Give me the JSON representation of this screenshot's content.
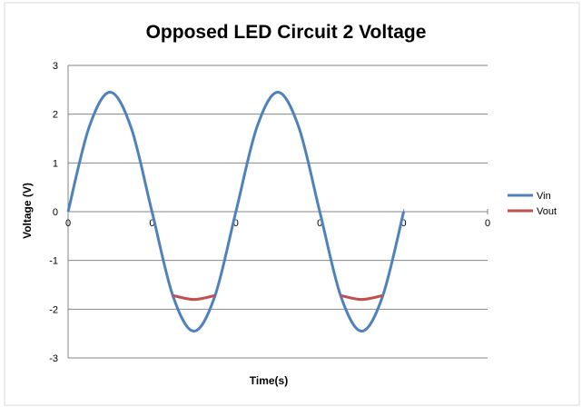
{
  "chart_data": {
    "type": "line",
    "title": "Opposed LED Circuit 2 Voltage",
    "xlabel": "Time(s)",
    "ylabel": "Voltage (V)",
    "ylim": [
      -3,
      3
    ],
    "y_ticks": [
      "3",
      "2",
      "1",
      "0",
      "-1",
      "-2",
      "-3"
    ],
    "x_tick_labels": [
      "0",
      "0",
      "0",
      "0",
      "0",
      "0"
    ],
    "xlim": [
      0,
      5
    ],
    "gridlines": true,
    "legend_position": "right",
    "series": [
      {
        "name": "Vin",
        "color": "#4f81bd",
        "x": [
          0.0,
          0.25,
          0.5,
          0.75,
          1.0,
          1.25,
          1.5,
          1.75,
          2.0,
          2.25,
          2.5,
          2.75,
          3.0,
          3.25,
          3.5,
          3.75,
          4.0
        ],
        "y": [
          0.0,
          1.73,
          2.45,
          1.73,
          0.0,
          -1.73,
          -2.45,
          -1.73,
          0.0,
          1.73,
          2.45,
          1.73,
          0.0,
          -1.73,
          -2.45,
          -1.73,
          0.0
        ]
      },
      {
        "name": "Vout",
        "color": "#c0504d",
        "x": [
          1.25,
          1.5,
          1.75,
          3.25,
          3.5,
          3.75
        ],
        "y": [
          -1.72,
          -1.8,
          -1.72,
          -1.72,
          -1.8,
          -1.72
        ]
      }
    ]
  }
}
